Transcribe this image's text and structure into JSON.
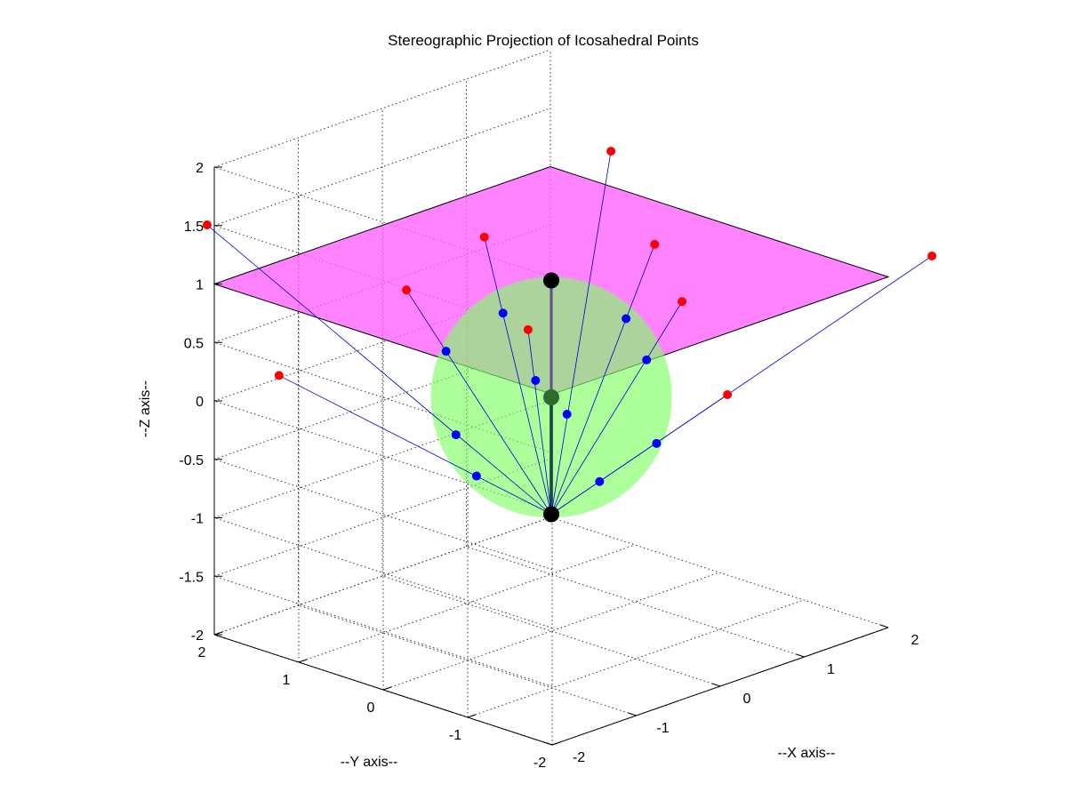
{
  "chart_data": {
    "type": "scatter3d",
    "title": "Stereographic Projection of Icosahedral Points",
    "xlabel": "--X axis--",
    "ylabel": "--Y axis--",
    "zlabel": "--Z axis--",
    "xlim": [
      -2,
      2
    ],
    "ylim": [
      -2,
      2
    ],
    "zlim": [
      -2,
      2
    ],
    "x_ticks": [
      "-2",
      "-1",
      "0",
      "1",
      "2"
    ],
    "y_ticks": [
      "2",
      "1",
      "0",
      "-1",
      "-2"
    ],
    "z_ticks": [
      "-2",
      "-1.5",
      "-1",
      "-0.5",
      "0",
      "0.5",
      "1",
      "1.5",
      "2"
    ],
    "grid": true,
    "sphere": {
      "center": [
        0,
        0,
        0
      ],
      "radius": 1,
      "color": "#80ff66"
    },
    "plane": {
      "z": 1,
      "range": [
        -2,
        2
      ],
      "color": "#ff66ff"
    },
    "projection_pole": [
      0,
      0,
      -1
    ],
    "north_pole": [
      0,
      0,
      1
    ],
    "sphere_points": [
      [
        0.0,
        0.0,
        1.0
      ],
      [
        0.89,
        0.0,
        0.45
      ],
      [
        0.28,
        0.85,
        0.45
      ],
      [
        -0.72,
        0.53,
        0.45
      ],
      [
        -0.72,
        -0.53,
        0.45
      ],
      [
        0.28,
        -0.85,
        0.45
      ],
      [
        0.72,
        0.53,
        -0.45
      ],
      [
        -0.28,
        0.85,
        -0.45
      ],
      [
        -0.89,
        0.0,
        -0.45
      ],
      [
        -0.28,
        -0.85,
        -0.45
      ],
      [
        0.72,
        -0.53,
        -0.45
      ],
      [
        0.0,
        0.0,
        -1.0
      ]
    ],
    "projected_points": [
      [
        0.0,
        0.0,
        1.0
      ],
      [
        1.23,
        0.0,
        1.0
      ],
      [
        0.38,
        1.17,
        1.0
      ],
      [
        -1.0,
        0.72,
        1.0
      ],
      [
        -1.0,
        -0.72,
        1.0
      ],
      [
        0.38,
        -1.17,
        1.0
      ],
      [
        2.62,
        1.9,
        1.0
      ],
      [
        -1.0,
        3.08,
        1.0
      ],
      [
        -3.24,
        0.0,
        1.0
      ],
      [
        -1.0,
        -3.08,
        1.0
      ],
      [
        2.62,
        -1.9,
        1.0
      ]
    ],
    "colors": {
      "projected": "#ff0000",
      "sphere_point": "#0000ff",
      "ray": "#0000cc",
      "pole": "#000000",
      "axis_line": "#2f6b2f"
    }
  }
}
